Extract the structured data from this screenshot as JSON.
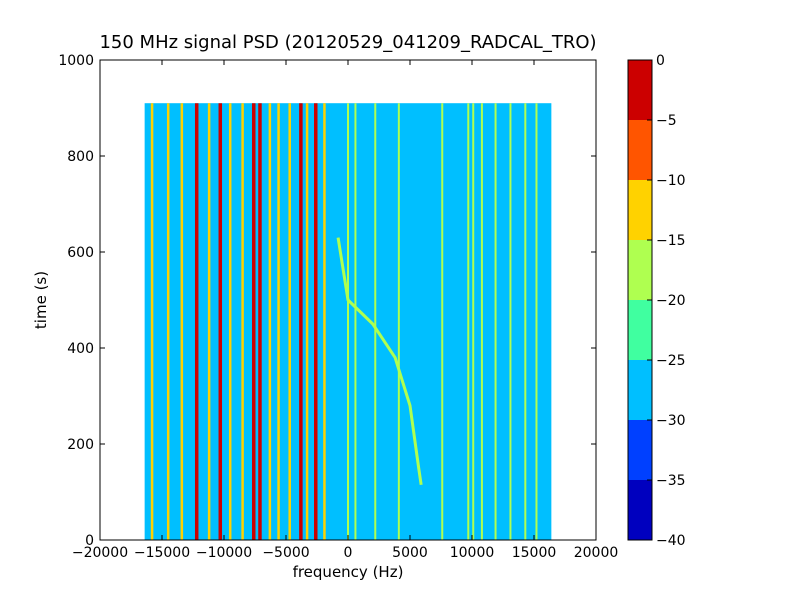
{
  "chart_data": {
    "type": "heatmap",
    "title": "150 MHz signal PSD (20120529_041209_RADCAL_TRO)",
    "xlabel": "frequency (Hz)",
    "ylabel": "time (s)",
    "xlim": [
      -20000,
      20000
    ],
    "ylim": [
      0,
      1000
    ],
    "xticks": [
      -20000,
      -15000,
      -10000,
      -5000,
      0,
      5000,
      10000,
      15000,
      20000
    ],
    "xtick_labels": [
      "−20000",
      "−15000",
      "−10000",
      "−5000",
      "0",
      "5000",
      "10000",
      "15000",
      "20000"
    ],
    "yticks": [
      0,
      200,
      400,
      600,
      800,
      1000
    ],
    "ytick_labels": [
      "0",
      "200",
      "400",
      "600",
      "800",
      "1000"
    ],
    "data_extent": {
      "x": [
        -16400,
        16400
      ],
      "y": [
        0,
        910
      ]
    },
    "background_level": [
      -25,
      -30
    ],
    "colorbar": {
      "range": [
        -40,
        0
      ],
      "levels": [
        -40,
        -35,
        -30,
        -25,
        -20,
        -15,
        -10,
        -5,
        0
      ],
      "tick_labels": [
        "0",
        "−5",
        "−10",
        "−15",
        "−20",
        "−25",
        "−30",
        "−35",
        "−40"
      ],
      "colors": [
        "#0000bf",
        "#0040ff",
        "#00bfff",
        "#40ffa0",
        "#afff50",
        "#ffd200",
        "#ff5500",
        "#cc0000"
      ],
      "colormap": "jet"
    },
    "features": {
      "strong_lines_hz": [
        -12200,
        -10300,
        -7600,
        -7100,
        -3800,
        -2600
      ],
      "strong_line_level": [
        -5,
        0
      ],
      "medium_lines_hz": [
        -15800,
        -14500,
        -13400,
        -11200,
        -9500,
        -8500,
        -6300,
        -5600,
        -4700,
        -3300,
        -1900
      ],
      "medium_line_level": [
        -15,
        -10
      ],
      "weak_lines_hz": [
        0,
        600,
        2200,
        4100,
        7600,
        9700,
        10100,
        10800,
        11900,
        13100,
        14300,
        15200
      ],
      "weak_line_level": [
        -20,
        -15
      ],
      "chirp": {
        "level": [
          -20,
          -15
        ],
        "points": [
          [
            -800,
            630
          ],
          [
            0,
            500
          ],
          [
            2000,
            450
          ],
          [
            3800,
            380
          ],
          [
            5000,
            280
          ],
          [
            5700,
            150
          ],
          [
            5900,
            115
          ]
        ]
      }
    }
  }
}
